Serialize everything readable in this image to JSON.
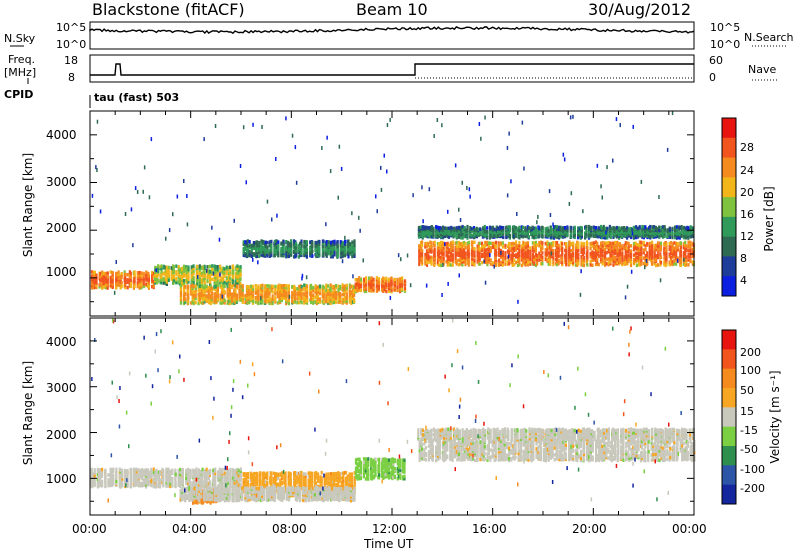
{
  "header": {
    "station": "Blackstone (fitACF)",
    "beam": "Beam 10",
    "date": "30/Aug/2012"
  },
  "strips": {
    "nsky_label": "N.Sky",
    "nsky_ticks": [
      "10^5",
      "10^0"
    ],
    "nsearch_label": "N.Search",
    "nsearch_ticks": [
      "10^5",
      "10^0"
    ],
    "freq_label": "Freq.",
    "freq_unit": "[MHz]",
    "freq_ticks": [
      "18",
      "8"
    ],
    "nave_label": "Nave",
    "nave_ticks": [
      "60",
      "0"
    ],
    "cpid_label": "CPID",
    "cpid_value": "tau (fast) 503"
  },
  "colors": {
    "power": [
      "#0a1fe0",
      "#1e3c9a",
      "#2e6b52",
      "#2f9a5a",
      "#7ec23f",
      "#f2b51a",
      "#f58a1f",
      "#f2541e",
      "#e8140f"
    ],
    "velocity": [
      "#e8140f",
      "#f2541e",
      "#f58a1f",
      "#f7a623",
      "#c9c8bd",
      "#7bcf43",
      "#2e8f4e",
      "#2c55a8",
      "#14269e"
    ]
  },
  "chart_data": [
    {
      "type": "heatmap",
      "panel": "power",
      "xlabel": "",
      "ylabel": "Slant Range [km]",
      "x_range": [
        "00:00",
        "00:00"
      ],
      "ylim": [
        200,
        4500
      ],
      "yticks": [
        "4000",
        "3000",
        "2000",
        "1000"
      ],
      "colorbar_label": "Power [dB]",
      "colorbar_ticks": [
        "28",
        "24",
        "20",
        "16",
        "12",
        "8",
        "4"
      ],
      "bands": [
        {
          "t_start": 0.0,
          "t_end": 2.5,
          "range_center": 950,
          "width": 300,
          "level": 7
        },
        {
          "t_start": 2.5,
          "t_end": 6.0,
          "range_center": 1050,
          "width": 350,
          "level": 5
        },
        {
          "t_start": 3.5,
          "t_end": 10.5,
          "range_center": 650,
          "width": 350,
          "level": 6
        },
        {
          "t_start": 6.0,
          "t_end": 10.5,
          "range_center": 1600,
          "width": 300,
          "level": 3
        },
        {
          "t_start": 10.5,
          "t_end": 12.5,
          "range_center": 850,
          "width": 250,
          "level": 7
        },
        {
          "t_start": 13.0,
          "t_end": 24.0,
          "range_center": 1500,
          "width": 450,
          "level": 7
        },
        {
          "t_start": 13.0,
          "t_end": 24.0,
          "range_center": 1950,
          "width": 200,
          "level": 3
        }
      ]
    },
    {
      "type": "heatmap",
      "panel": "velocity",
      "xlabel": "Time UT",
      "ylabel": "Slant Range [km]",
      "x_range": [
        "00:00",
        "00:00"
      ],
      "ylim": [
        200,
        4500
      ],
      "yticks": [
        "4000",
        "3000",
        "2000",
        "1000"
      ],
      "xticks": [
        "00:00",
        "04:00",
        "08:00",
        "12:00",
        "16:00",
        "20:00",
        "00:00"
      ],
      "colorbar_label": "Velocity [m s⁻¹]",
      "colorbar_ticks": [
        "200",
        "100",
        "50",
        "15",
        "-15",
        "-50",
        "-100",
        "-200"
      ],
      "bands": [
        {
          "t_start": 0.0,
          "t_end": 6.0,
          "range_center": 1000,
          "width": 350,
          "level": 4
        },
        {
          "t_start": 4.0,
          "t_end": 5.0,
          "range_center": 600,
          "width": 250,
          "level": 2
        },
        {
          "t_start": 6.0,
          "t_end": 10.5,
          "range_center": 900,
          "width": 400,
          "level": 3
        },
        {
          "t_start": 3.5,
          "t_end": 10.5,
          "range_center": 650,
          "width": 250,
          "level": 4
        },
        {
          "t_start": 10.5,
          "t_end": 12.5,
          "range_center": 1200,
          "width": 400,
          "level": 5
        },
        {
          "t_start": 13.0,
          "t_end": 24.0,
          "range_center": 1600,
          "width": 400,
          "level": 4
        },
        {
          "t_start": 13.0,
          "t_end": 24.0,
          "range_center": 1950,
          "width": 200,
          "level": 4
        }
      ]
    }
  ]
}
